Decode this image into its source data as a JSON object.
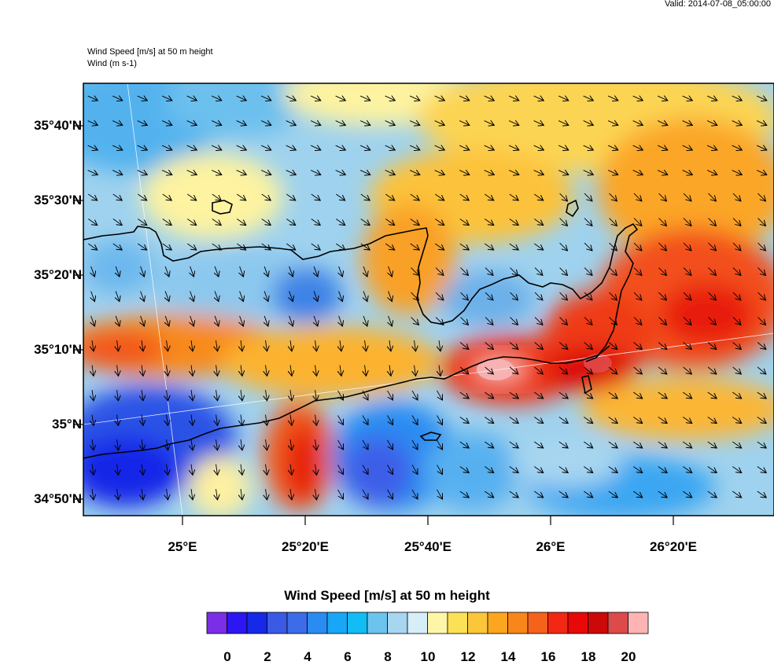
{
  "header": {
    "valid": "Valid: 2014-07-08_05:00:00",
    "title_line1": "Wind Speed [m/s] at 50 m height",
    "title_line2": "Wind   (m s-1)"
  },
  "map": {
    "lat_labels": [
      "35°40'N",
      "35°30'N",
      "35°20'N",
      "35°10'N",
      "35°N",
      "34°50'N"
    ],
    "lon_labels": [
      "25°E",
      "25°20'E",
      "25°40'E",
      "26°E",
      "26°20'E"
    ]
  },
  "colorbar": {
    "title": "Wind Speed [m/s] at 50 m height",
    "labels": [
      "0",
      "2",
      "4",
      "6",
      "8",
      "10",
      "12",
      "14",
      "16",
      "18",
      "20"
    ],
    "colors": [
      "#7a2ee6",
      "#2c16f2",
      "#1628e8",
      "#3a5ae6",
      "#3c6ce8",
      "#2a8cf2",
      "#1aa6f6",
      "#12bcf4",
      "#6cc4ee",
      "#a8d6f0",
      "#d6eef8",
      "#fdf6a8",
      "#fce156",
      "#fcc63a",
      "#fba61e",
      "#f8861a",
      "#f5621a",
      "#f22812",
      "#e80808",
      "#cc0808",
      "#dc4a4a",
      "#ffb4b4"
    ]
  }
}
